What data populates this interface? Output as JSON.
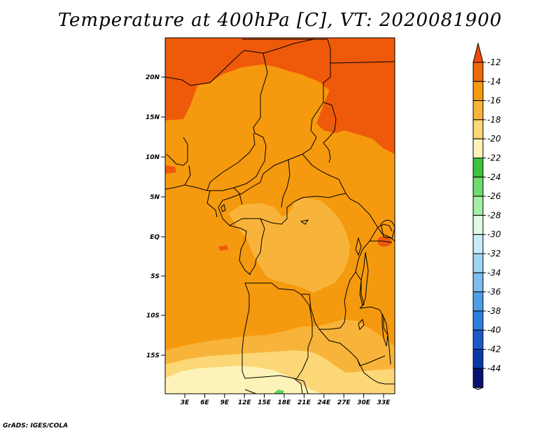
{
  "title": "Temperature at 400hPa [C], VT: 2020081900",
  "credit": "GrADS: IGES/COLA",
  "map": {
    "lat_labels": [
      "20N",
      "15N",
      "10N",
      "5N",
      "EQ",
      "5S",
      "10S",
      "15S"
    ],
    "lon_labels": [
      "3E",
      "6E",
      "9E",
      "12E",
      "15E",
      "18E",
      "21E",
      "24E",
      "27E",
      "30E",
      "33E"
    ],
    "field_colors": {
      "c_12_14": "#ee5a0a",
      "c_14_16": "#f59a0e",
      "c_16_18": "#f8b43a",
      "c_18_20": "#fbd777",
      "c_20_22": "#fdf3b8",
      "c_24_26": "#5cd35c"
    }
  },
  "colorbar": {
    "labels": [
      "-12",
      "-14",
      "-16",
      "-18",
      "-20",
      "-22",
      "-24",
      "-26",
      "-28",
      "-30",
      "-32",
      "-34",
      "-36",
      "-38",
      "-40",
      "-42",
      "-44"
    ],
    "colors": [
      "#f14a0c",
      "#ee6a0a",
      "#f59a0e",
      "#f8b43a",
      "#fbd777",
      "#fdf3b8",
      "#3ec13e",
      "#6edc6e",
      "#a5eea5",
      "#e3f9e3",
      "#c9ecfa",
      "#a0d6f5",
      "#7cbcee",
      "#4f9fe6",
      "#2e7fe0",
      "#1c59c8",
      "#0a3aa8",
      "#0a1070",
      "#e0dcf5"
    ]
  }
}
